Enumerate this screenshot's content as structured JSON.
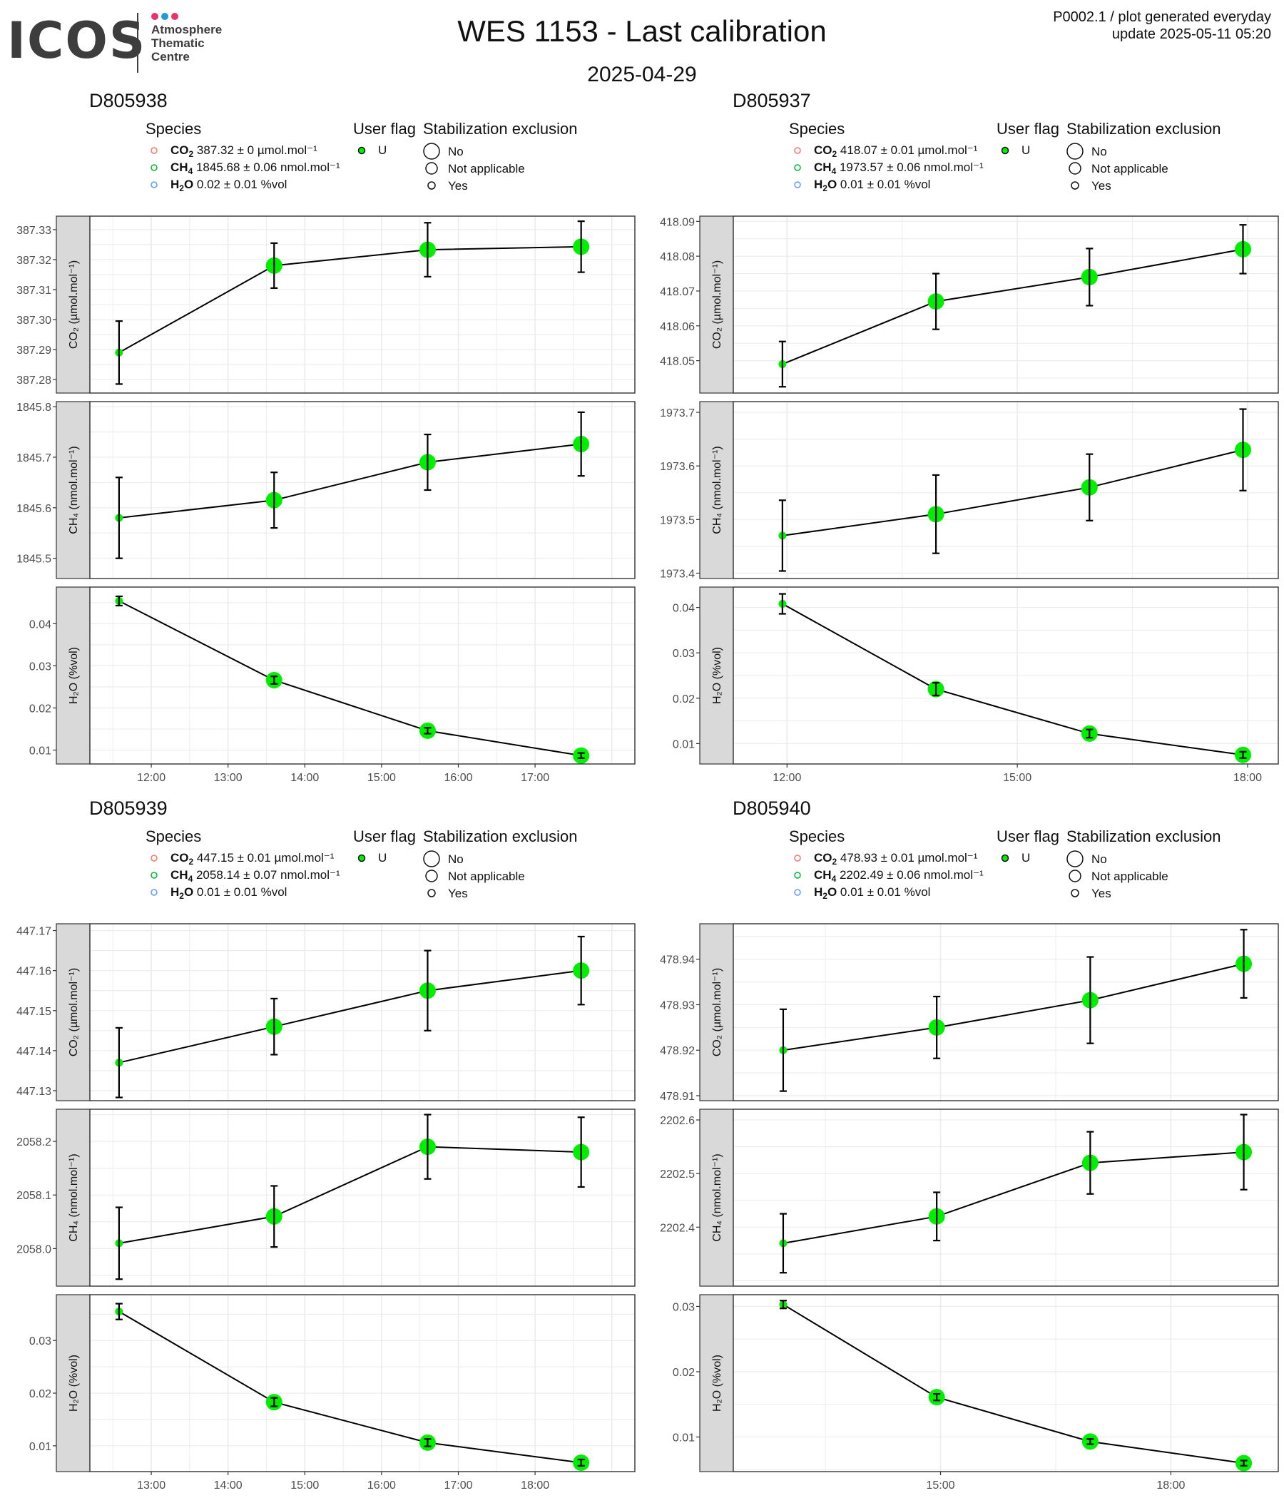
{
  "logo": {
    "text": "ICOS",
    "subtitle": [
      "Atmosphere",
      "Thematic",
      "Centre"
    ],
    "dot_colors": [
      "#e8336d",
      "#1f9bd8",
      "#e8336d"
    ]
  },
  "header": {
    "title": "WES 1153 - Last calibration",
    "date": "2025-04-29",
    "info_line1": "P0002.1 / plot generated everyday",
    "info_line2": "update  2025-05-11 05:20"
  },
  "legend_titles": {
    "species": "Species",
    "user_flag": "User flag",
    "stabilization": "Stabilization exclusion",
    "flag_value": "U",
    "stab_values": [
      "No",
      "Not applicable",
      "Yes"
    ]
  },
  "colors": {
    "point": "#00ee00",
    "co2_legend": "#f8766d",
    "ch4_legend": "#00ba38",
    "h2o_legend": "#619cff",
    "strip": "#d9d9d9",
    "grid": "#ebebeb"
  },
  "axis_labels": {
    "co2": "CO₂ (µmol.mol⁻¹)",
    "ch4": "CH₄ (nmol.mol⁻¹)",
    "h2o": "H₂O (%vol)"
  },
  "chart_data": [
    {
      "type": "line",
      "id": "D805938",
      "legend": {
        "co2": "387.32 ± 0 µmol.mol⁻¹",
        "ch4": "1845.68 ± 0.06 nmol.mol⁻¹",
        "h2o": "0.02 ± 0.01 %vol"
      },
      "x_ticks": [
        "12:00",
        "13:00",
        "14:00",
        "15:00",
        "16:00",
        "17:00"
      ],
      "x_tick_hours": [
        12,
        13,
        14,
        15,
        16,
        17
      ],
      "x_range": [
        11.2,
        18.3
      ],
      "x": [
        11.58,
        13.6,
        15.6,
        17.6
      ],
      "point_size": [
        "small",
        "large",
        "large",
        "large"
      ],
      "co2": {
        "values": [
          387.289,
          387.318,
          387.3233,
          387.3243
        ],
        "err": [
          0.0105,
          0.0075,
          0.009,
          0.0085
        ],
        "ylim": [
          387.2755,
          387.3345
        ],
        "ticks": [
          387.28,
          387.29,
          387.3,
          387.31,
          387.32,
          387.33
        ],
        "tick_labels": [
          "387.28",
          "387.29",
          "387.30",
          "387.31",
          "387.32",
          "387.33"
        ]
      },
      "ch4": {
        "values": [
          1845.58,
          1845.615,
          1845.69,
          1845.726
        ],
        "err": [
          0.08,
          0.055,
          0.055,
          0.063
        ],
        "ylim": [
          1845.46,
          1845.81
        ],
        "ticks": [
          1845.5,
          1845.6,
          1845.7,
          1845.8
        ],
        "tick_labels": [
          "1845.5",
          "1845.6",
          "1845.7",
          "1845.8"
        ]
      },
      "h2o": {
        "values": [
          0.0454,
          0.0266,
          0.0146,
          0.0087
        ],
        "err": [
          0.0011,
          0.0009,
          0.0007,
          0.0006
        ],
        "ylim": [
          0.0067,
          0.0487
        ],
        "ticks": [
          0.01,
          0.02,
          0.03,
          0.04
        ],
        "tick_labels": [
          "0.01",
          "0.02",
          "0.03",
          "0.04"
        ]
      }
    },
    {
      "type": "line",
      "id": "D805937",
      "legend": {
        "co2": "418.07 ± 0.01 µmol.mol⁻¹",
        "ch4": "1973.57 ± 0.06 nmol.mol⁻¹",
        "h2o": "0.01 ± 0.01 %vol"
      },
      "x_ticks": [
        "12:00",
        "15:00",
        "18:00"
      ],
      "x_tick_hours": [
        12,
        15,
        18
      ],
      "x_range": [
        11.3,
        18.4
      ],
      "x": [
        11.94,
        13.94,
        15.94,
        17.94
      ],
      "point_size": [
        "small",
        "large",
        "large",
        "large"
      ],
      "co2": {
        "values": [
          418.049,
          418.067,
          418.074,
          418.082
        ],
        "err": [
          0.0065,
          0.008,
          0.0082,
          0.007
        ],
        "ylim": [
          418.0407,
          418.0915
        ],
        "ticks": [
          418.05,
          418.06,
          418.07,
          418.08,
          418.09
        ],
        "tick_labels": [
          "418.05",
          "418.06",
          "418.07",
          "418.08",
          "418.09"
        ]
      },
      "ch4": {
        "values": [
          1973.47,
          1973.51,
          1973.56,
          1973.63
        ],
        "err": [
          0.066,
          0.073,
          0.062,
          0.076
        ],
        "ylim": [
          1973.39,
          1973.72
        ],
        "ticks": [
          1973.4,
          1973.5,
          1973.6,
          1973.7
        ],
        "tick_labels": [
          "1973.4",
          "1973.5",
          "1973.6",
          "1973.7"
        ]
      },
      "h2o": {
        "values": [
          0.0408,
          0.022,
          0.0122,
          0.0075
        ],
        "err": [
          0.0022,
          0.0014,
          0.0009,
          0.0007
        ],
        "ylim": [
          0.0055,
          0.0445
        ],
        "ticks": [
          0.01,
          0.02,
          0.03,
          0.04
        ],
        "tick_labels": [
          "0.01",
          "0.02",
          "0.03",
          "0.04"
        ]
      }
    },
    {
      "type": "line",
      "id": "D805939",
      "legend": {
        "co2": "447.15 ± 0.01 µmol.mol⁻¹",
        "ch4": "2058.14 ± 0.07 nmol.mol⁻¹",
        "h2o": "0.01 ± 0.01 %vol"
      },
      "x_ticks": [
        "13:00",
        "14:00",
        "15:00",
        "16:00",
        "17:00",
        "18:00"
      ],
      "x_tick_hours": [
        13,
        14,
        15,
        16,
        17,
        18
      ],
      "x_range": [
        12.2,
        19.3
      ],
      "x": [
        12.58,
        14.6,
        16.6,
        18.6
      ],
      "point_size": [
        "small",
        "large",
        "large",
        "large"
      ],
      "co2": {
        "values": [
          447.137,
          447.146,
          447.155,
          447.16
        ],
        "err": [
          0.0087,
          0.007,
          0.01,
          0.0085
        ],
        "ylim": [
          447.1275,
          447.1717
        ],
        "ticks": [
          447.13,
          447.14,
          447.15,
          447.16,
          447.17
        ],
        "tick_labels": [
          "447.13",
          "447.14",
          "447.15",
          "447.16",
          "447.17"
        ]
      },
      "ch4": {
        "values": [
          2058.01,
          2058.06,
          2058.19,
          2058.18
        ],
        "err": [
          0.067,
          0.057,
          0.06,
          0.065
        ],
        "ylim": [
          2057.93,
          2058.26
        ],
        "ticks": [
          2058.0,
          2058.1,
          2058.2
        ],
        "tick_labels": [
          "2058.0",
          "2058.1",
          "2058.2"
        ]
      },
      "h2o": {
        "values": [
          0.0355,
          0.0183,
          0.0106,
          0.0068
        ],
        "err": [
          0.0015,
          0.0008,
          0.0007,
          0.0006
        ],
        "ylim": [
          0.0051,
          0.0387
        ],
        "ticks": [
          0.01,
          0.02,
          0.03
        ],
        "tick_labels": [
          "0.01",
          "0.02",
          "0.03"
        ]
      }
    },
    {
      "type": "line",
      "id": "D805940",
      "legend": {
        "co2": "478.93 ± 0.01 µmol.mol⁻¹",
        "ch4": "2202.49 ± 0.06 nmol.mol⁻¹",
        "h2o": "0.01 ± 0.01 %vol"
      },
      "x_ticks": [
        "15:00",
        "18:00"
      ],
      "x_tick_hours": [
        15,
        18
      ],
      "x_range": [
        12.3,
        19.4
      ],
      "x": [
        12.95,
        14.95,
        16.95,
        18.95
      ],
      "point_size": [
        "small",
        "large",
        "large",
        "large"
      ],
      "co2": {
        "values": [
          478.92,
          478.925,
          478.931,
          478.939
        ],
        "err": [
          0.009,
          0.0068,
          0.0095,
          0.0075
        ],
        "ylim": [
          478.9089,
          478.9478
        ],
        "ticks": [
          478.91,
          478.92,
          478.93,
          478.94
        ],
        "tick_labels": [
          "478.91",
          "478.92",
          "478.93",
          "478.94"
        ]
      },
      "ch4": {
        "values": [
          2202.37,
          2202.42,
          2202.52,
          2202.54
        ],
        "err": [
          0.055,
          0.045,
          0.058,
          0.07
        ],
        "ylim": [
          2202.29,
          2202.62
        ],
        "ticks": [
          2202.4,
          2202.5,
          2202.6
        ],
        "tick_labels": [
          "2202.4",
          "2202.5",
          "2202.6"
        ]
      },
      "h2o": {
        "values": [
          0.0303,
          0.0161,
          0.0093,
          0.006
        ],
        "err": [
          0.0006,
          0.0005,
          0.0004,
          0.0004
        ],
        "ylim": [
          0.0047,
          0.0318
        ],
        "ticks": [
          0.01,
          0.02,
          0.03
        ],
        "tick_labels": [
          "0.01",
          "0.02",
          "0.03"
        ]
      }
    }
  ]
}
